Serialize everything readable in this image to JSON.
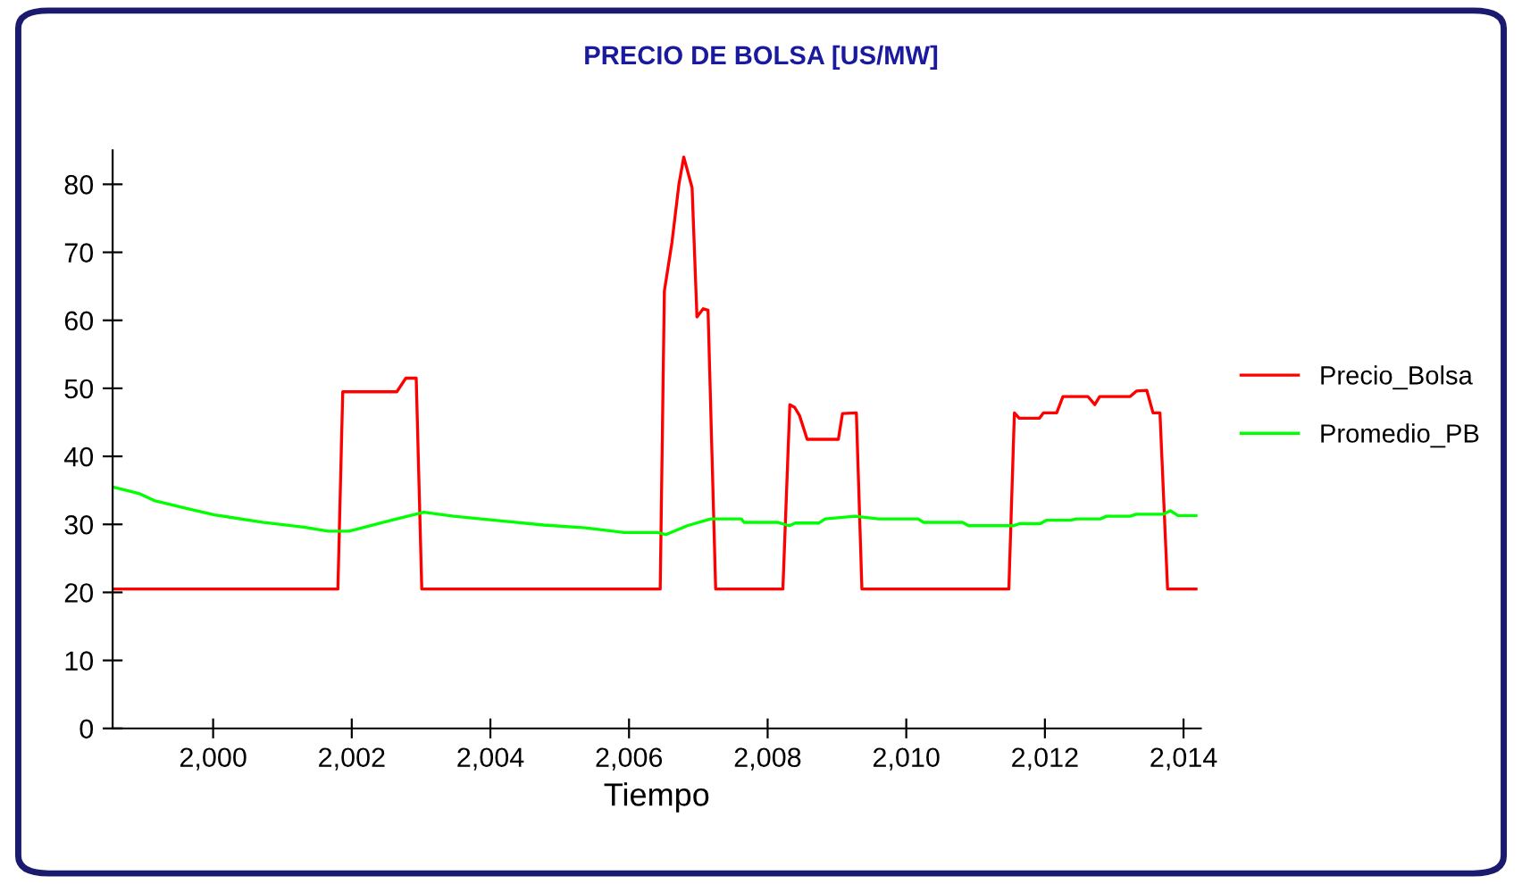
{
  "chart_data": {
    "type": "line",
    "title": "PRECIO DE BOLSA [US/MW]",
    "xlabel": "Tiempo",
    "xlim": [
      1998.55,
      2014.25
    ],
    "ylim": [
      0,
      85
    ],
    "xticks": [
      {
        "value": 2000,
        "label": "2,000"
      },
      {
        "value": 2002,
        "label": "2,002"
      },
      {
        "value": 2004,
        "label": "2,004"
      },
      {
        "value": 2006,
        "label": "2,006"
      },
      {
        "value": 2008,
        "label": "2,008"
      },
      {
        "value": 2010,
        "label": "2,010"
      },
      {
        "value": 2012,
        "label": "2,012"
      },
      {
        "value": 2014,
        "label": "2,014"
      }
    ],
    "yticks": [
      0,
      10,
      20,
      30,
      40,
      50,
      60,
      70,
      80
    ],
    "grid": false,
    "legend": "right",
    "line_style": "solid",
    "marker": "none",
    "series": [
      {
        "name": "Precio_Bolsa",
        "color": "#ff0000",
        "x": [
          1998.55,
          2001.8,
          2001.87,
          2002.65,
          2002.78,
          2002.93,
          2003.01,
          2006.45,
          2006.51,
          2006.62,
          2006.72,
          2006.79,
          2006.91,
          2006.98,
          2007.07,
          2007.14,
          2007.25,
          2008.22,
          2008.32,
          2008.39,
          2008.46,
          2008.57,
          2009.02,
          2009.08,
          2009.28,
          2009.36,
          2011.48,
          2011.56,
          2011.63,
          2011.92,
          2011.98,
          2012.17,
          2012.26,
          2012.62,
          2012.72,
          2012.79,
          2013.23,
          2013.32,
          2013.47,
          2013.56,
          2013.66,
          2013.77,
          2014.18
        ],
        "values": [
          20.5,
          20.5,
          49.5,
          49.5,
          51.5,
          51.5,
          20.5,
          20.5,
          64.3,
          71.5,
          80,
          84,
          79.5,
          60.5,
          61.7,
          61.5,
          20.5,
          20.5,
          47.6,
          47.2,
          46,
          42.5,
          42.5,
          46.3,
          46.4,
          20.5,
          20.5,
          46.4,
          45.6,
          45.6,
          46.4,
          46.4,
          48.8,
          48.8,
          47.6,
          48.8,
          48.8,
          49.6,
          49.7,
          46.4,
          46.4,
          20.5,
          20.5
        ]
      },
      {
        "name": "Promedio_PB",
        "color": "#00ff00",
        "x": [
          1998.55,
          1998.94,
          1999.15,
          1999.59,
          2000.02,
          2000.71,
          2001.31,
          2001.66,
          2001.96,
          2002.61,
          2003.04,
          2003.47,
          2004.16,
          2004.77,
          2005.37,
          2005.93,
          2006.41,
          2006.53,
          2006.84,
          2007.18,
          2007.62,
          2007.66,
          2008.14,
          2008.31,
          2008.4,
          2008.74,
          2008.83,
          2009.26,
          2009.6,
          2010.17,
          2010.25,
          2010.81,
          2010.9,
          2011.55,
          2011.63,
          2011.93,
          2012.02,
          2012.37,
          2012.45,
          2012.8,
          2012.89,
          2013.23,
          2013.32,
          2013.71,
          2013.81,
          2013.92,
          2014.18
        ],
        "values": [
          35.5,
          34.5,
          33.5,
          32.4,
          31.4,
          30.3,
          29.6,
          29.0,
          29.0,
          30.7,
          31.8,
          31.2,
          30.5,
          29.9,
          29.5,
          28.8,
          28.8,
          28.5,
          29.8,
          30.8,
          30.8,
          30.3,
          30.3,
          29.8,
          30.2,
          30.2,
          30.8,
          31.2,
          30.8,
          30.8,
          30.3,
          30.3,
          29.8,
          29.8,
          30.1,
          30.1,
          30.6,
          30.6,
          30.8,
          30.8,
          31.2,
          31.2,
          31.5,
          31.5,
          32.0,
          31.3,
          31.3
        ]
      }
    ]
  }
}
